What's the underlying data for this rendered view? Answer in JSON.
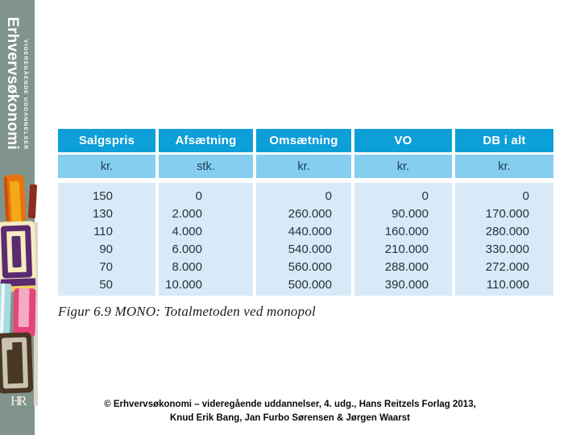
{
  "sidebar": {
    "brand_title": "Erhvervsøkonomi",
    "brand_subtitle": "VIDEREGÅENDE UDDANNELSER",
    "publisher_logo": "HR"
  },
  "table": {
    "headers": [
      "Salgspris",
      "Afsætning",
      "Omsætning",
      "VO",
      "DB i alt"
    ],
    "units": [
      "kr.",
      "stk.",
      "kr.",
      "kr.",
      "kr."
    ],
    "rows": [
      [
        "150",
        "0",
        "0",
        "0",
        "0"
      ],
      [
        "130",
        "2.000",
        "260.000",
        "90.000",
        "170.000"
      ],
      [
        "110",
        "4.000",
        "440.000",
        "160.000",
        "280.000"
      ],
      [
        "90",
        "6.000",
        "540.000",
        "210.000",
        "330.000"
      ],
      [
        "70",
        "8.000",
        "560.000",
        "288.000",
        "272.000"
      ],
      [
        "50",
        "10.000",
        "500.000",
        "390.000",
        "110.000"
      ]
    ]
  },
  "caption": "Figur 6.9 MONO: Totalmetoden ved monopol",
  "footer": {
    "line1": "© Erhvervsøkonomi – videregående uddannelser, 4. udg., Hans Reitzels Forlag 2013,",
    "line2": "Knud Erik Bang, Jan Furbo Sørensen & Jørgen Waarst"
  },
  "colors": {
    "sidebar_bg": "#80948D",
    "table_header_bg": "#0D9FD8",
    "table_units_bg": "#85CEF0",
    "table_data_bg": "#D8EAF7",
    "header_text": "#FFFFFF"
  }
}
